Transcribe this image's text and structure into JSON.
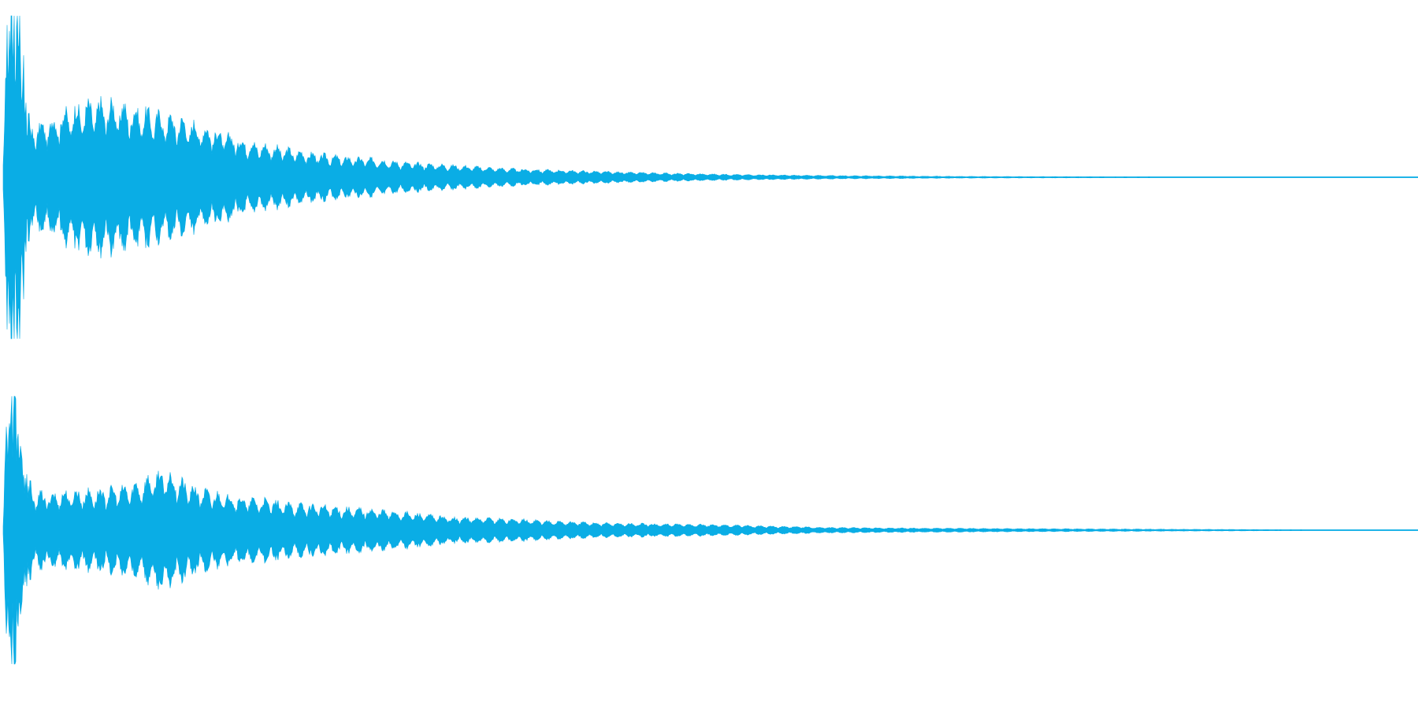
{
  "waveform": {
    "color": "#0aade5",
    "background": "#ffffff",
    "channels": [
      {
        "name": "",
        "envelope": [
          [
            0.0,
            0.05
          ],
          [
            0.2,
            0.75
          ],
          [
            0.5,
            0.9
          ],
          [
            0.8,
            0.95
          ],
          [
            1.0,
            0.9
          ],
          [
            1.2,
            0.85
          ],
          [
            1.4,
            0.55
          ],
          [
            1.7,
            0.35
          ],
          [
            2.0,
            0.3
          ],
          [
            3.0,
            0.32
          ],
          [
            4.0,
            0.38
          ],
          [
            5.0,
            0.42
          ],
          [
            6.0,
            0.44
          ],
          [
            7.0,
            0.45
          ],
          [
            8.0,
            0.44
          ],
          [
            9.0,
            0.42
          ],
          [
            10.0,
            0.4
          ],
          [
            11.0,
            0.38
          ],
          [
            12.0,
            0.36
          ],
          [
            13.0,
            0.34
          ],
          [
            14.0,
            0.31
          ],
          [
            15.0,
            0.28
          ],
          [
            16.0,
            0.25
          ],
          [
            17.0,
            0.22
          ],
          [
            18.0,
            0.2
          ],
          [
            20.0,
            0.17
          ],
          [
            22.0,
            0.14
          ],
          [
            24.0,
            0.12
          ],
          [
            26.0,
            0.11
          ],
          [
            28.0,
            0.09
          ],
          [
            30.0,
            0.08
          ],
          [
            33.0,
            0.065
          ],
          [
            36.0,
            0.05
          ],
          [
            40.0,
            0.04
          ],
          [
            44.0,
            0.03
          ],
          [
            48.0,
            0.022
          ],
          [
            52.0,
            0.016
          ],
          [
            56.0,
            0.012
          ],
          [
            60.0,
            0.009
          ],
          [
            66.0,
            0.006
          ],
          [
            72.0,
            0.004
          ],
          [
            80.0,
            0.003
          ],
          [
            90.0,
            0.002
          ],
          [
            100.0,
            0.0005
          ]
        ]
      },
      {
        "name": "",
        "envelope": [
          [
            0.0,
            0.05
          ],
          [
            0.2,
            0.7
          ],
          [
            0.5,
            0.92
          ],
          [
            0.8,
            0.85
          ],
          [
            1.0,
            0.72
          ],
          [
            1.3,
            0.55
          ],
          [
            1.6,
            0.35
          ],
          [
            2.0,
            0.27
          ],
          [
            3.0,
            0.26
          ],
          [
            4.0,
            0.27
          ],
          [
            5.0,
            0.28
          ],
          [
            6.0,
            0.28
          ],
          [
            7.0,
            0.29
          ],
          [
            8.0,
            0.3
          ],
          [
            9.0,
            0.32
          ],
          [
            10.0,
            0.36
          ],
          [
            11.0,
            0.42
          ],
          [
            12.0,
            0.4
          ],
          [
            13.0,
            0.33
          ],
          [
            14.0,
            0.29
          ],
          [
            15.0,
            0.27
          ],
          [
            16.0,
            0.25
          ],
          [
            17.0,
            0.23
          ],
          [
            18.0,
            0.22
          ],
          [
            19.0,
            0.21
          ],
          [
            20.0,
            0.19
          ],
          [
            22.0,
            0.18
          ],
          [
            24.0,
            0.16
          ],
          [
            26.0,
            0.15
          ],
          [
            28.0,
            0.13
          ],
          [
            30.0,
            0.11
          ],
          [
            32.0,
            0.09
          ],
          [
            34.0,
            0.085
          ],
          [
            36.0,
            0.08
          ],
          [
            38.0,
            0.07
          ],
          [
            40.0,
            0.06
          ],
          [
            43.0,
            0.05
          ],
          [
            46.0,
            0.045
          ],
          [
            50.0,
            0.04
          ],
          [
            54.0,
            0.03
          ],
          [
            58.0,
            0.02
          ],
          [
            62.0,
            0.016
          ],
          [
            66.0,
            0.014
          ],
          [
            70.0,
            0.012
          ],
          [
            75.0,
            0.01
          ],
          [
            80.0,
            0.008
          ],
          [
            85.0,
            0.006
          ],
          [
            90.0,
            0.004
          ],
          [
            95.0,
            0.003
          ],
          [
            100.0,
            0.0005
          ]
        ]
      }
    ]
  }
}
